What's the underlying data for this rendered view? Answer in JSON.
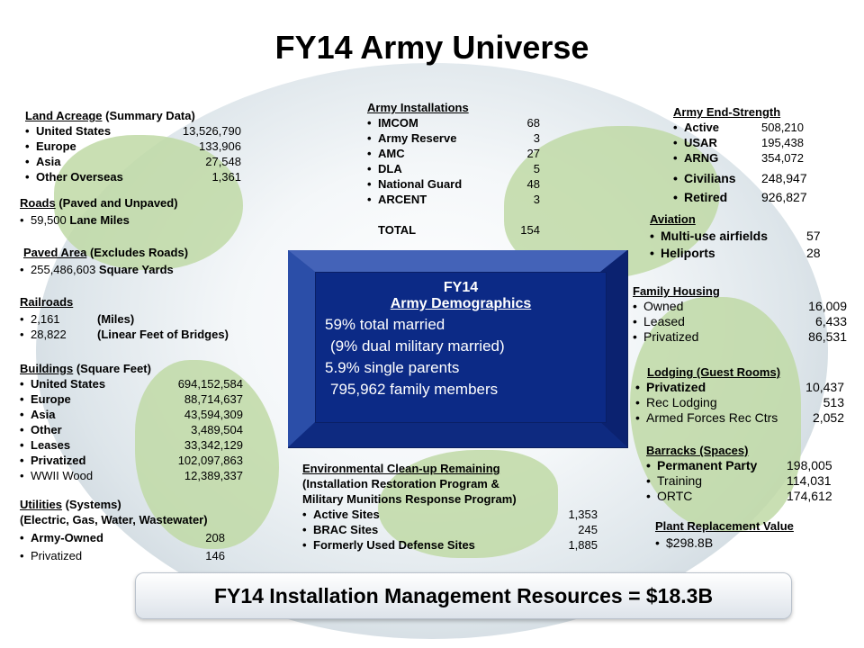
{
  "title": "FY14 Army Universe",
  "land_acreage": {
    "heading_main": "Land Acreage",
    "heading_sub": " (Summary Data)",
    "items": [
      {
        "label": "United States",
        "value": "13,526,790"
      },
      {
        "label": "Europe",
        "value": "133,906"
      },
      {
        "label": "Asia",
        "value": "27,548"
      },
      {
        "label": "Other Overseas",
        "value": "1,361"
      }
    ]
  },
  "roads": {
    "heading_main": "Roads",
    "heading_sub": "  (Paved and Unpaved)",
    "value": "59,500",
    "unit": " Lane Miles"
  },
  "paved_area": {
    "heading_main": "Paved Area",
    "heading_sub": "  (Excludes Roads)",
    "value": "255,486,603",
    "unit": "  Square Yards"
  },
  "railroads": {
    "heading": "Railroads",
    "items": [
      {
        "value": "2,161",
        "unit": "(Miles)"
      },
      {
        "value": "28,822",
        "unit": "(Linear Feet of Bridges)"
      }
    ]
  },
  "buildings": {
    "heading_main": "Buildings",
    "heading_sub": "  (Square Feet)",
    "items": [
      {
        "label": "United States",
        "value": "694,152,584"
      },
      {
        "label": "Europe",
        "value": "88,714,637"
      },
      {
        "label": "Asia",
        "value": "43,594,309"
      },
      {
        "label": "Other",
        "value": "3,489,504"
      },
      {
        "label": "Leases",
        "value": "33,342,129"
      },
      {
        "label": "Privatized",
        "value": "102,097,863"
      },
      {
        "label": "WWII Wood",
        "value": "12,389,337"
      }
    ]
  },
  "utilities": {
    "heading_main": "Utilities",
    "heading_sub": " (Systems)",
    "heading_line2": "(Electric, Gas, Water, Wastewater)",
    "items": [
      {
        "label": "Army-Owned",
        "value": "208"
      },
      {
        "label": "Privatized",
        "value": "146"
      }
    ]
  },
  "installations": {
    "heading": "Army Installations",
    "items": [
      {
        "label": "IMCOM",
        "value": "68"
      },
      {
        "label": "Army Reserve",
        "value": "3"
      },
      {
        "label": "AMC",
        "value": "27"
      },
      {
        "label": "DLA",
        "value": "5"
      },
      {
        "label": "National Guard",
        "value": "48"
      },
      {
        "label": "ARCENT",
        "value": "3"
      }
    ],
    "total_label": "TOTAL",
    "total_value": "154"
  },
  "end_strength": {
    "heading": "Army End-Strength",
    "items": [
      {
        "label": "Active",
        "value": "508,210"
      },
      {
        "label": "USAR",
        "value": "195,438"
      },
      {
        "label": "ARNG",
        "value": "354,072"
      },
      {
        "label": "Civilians",
        "value": "248,947"
      },
      {
        "label": "Retired",
        "value": "926,827"
      }
    ]
  },
  "aviation": {
    "heading": "Aviation",
    "items": [
      {
        "label": "Multi-use airfields",
        "value": "57"
      },
      {
        "label": "Heliports",
        "value": "28"
      }
    ]
  },
  "family_housing": {
    "heading": "Family Housing",
    "items": [
      {
        "label": "Owned",
        "value": "16,009"
      },
      {
        "label": "Leased",
        "value": "6,433"
      },
      {
        "label": "Privatized",
        "value": "86,531"
      }
    ]
  },
  "lodging": {
    "heading": "Lodging (Guest Rooms)",
    "items": [
      {
        "label": "Privatized",
        "value": "10,437"
      },
      {
        "label": "Rec Lodging",
        "value": "513"
      },
      {
        "label": "Armed Forces Rec Ctrs",
        "value": "2,052"
      }
    ]
  },
  "barracks": {
    "heading": "Barracks (Spaces)",
    "items": [
      {
        "label": "Permanent Party",
        "value": "198,005"
      },
      {
        "label": "Training",
        "value": "114,031"
      },
      {
        "label": "ORTC",
        "value": "174,612"
      }
    ]
  },
  "plant_replacement": {
    "heading": "Plant Replacement Value",
    "value": "$298.8B"
  },
  "environmental": {
    "heading": "Environmental Clean-up Remaining",
    "line2": "(Installation Restoration Program &",
    "line3": "Military Munitions Response Program)",
    "items": [
      {
        "label": "Active Sites",
        "value": "1,353"
      },
      {
        "label": "BRAC Sites",
        "value": "245"
      },
      {
        "label": "Formerly Used Defense Sites",
        "value": "1,885"
      }
    ]
  },
  "demographics": {
    "line1": "FY14",
    "line2": "Army Demographics",
    "line3": "59% total married",
    "line4": "(9% dual military married)",
    "line5": "5.9% single parents",
    "line6": "795,962 family members"
  },
  "banner": "FY14 Installation Management Resources = $18.3B",
  "colors": {
    "box_dark": "#0c2a86",
    "box_bevel": "#1a3a8c",
    "land": "#bfd9a6"
  }
}
